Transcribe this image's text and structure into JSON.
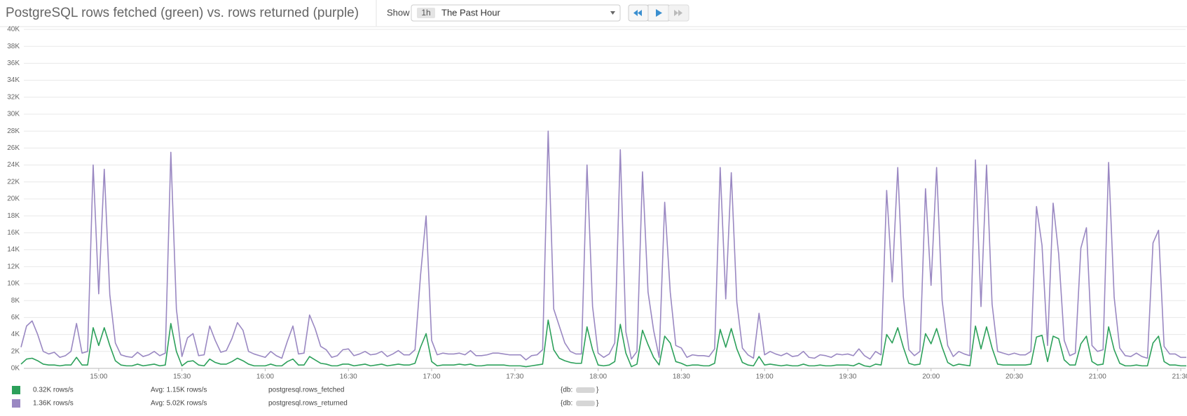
{
  "controls": {
    "show_label": "Show",
    "range_badge": "1h",
    "range_text": "The Past Hour"
  },
  "chart_data": {
    "type": "line",
    "title": "PostgreSQL rows fetched (green) vs. rows returned (purple)",
    "x": [
      "14:32",
      "14:34",
      "14:36",
      "14:38",
      "14:40",
      "14:42",
      "14:44",
      "14:46",
      "14:48",
      "14:50",
      "14:52",
      "14:54",
      "14:56",
      "14:58",
      "15:00",
      "15:02",
      "15:04",
      "15:06",
      "15:08",
      "15:10",
      "15:12",
      "15:14",
      "15:16",
      "15:18",
      "15:20",
      "15:22",
      "15:24",
      "15:26",
      "15:28",
      "15:30",
      "15:32",
      "15:34",
      "15:36",
      "15:38",
      "15:40",
      "15:42",
      "15:44",
      "15:46",
      "15:48",
      "15:50",
      "15:52",
      "15:54",
      "15:56",
      "15:58",
      "16:00",
      "16:02",
      "16:04",
      "16:06",
      "16:08",
      "16:10",
      "16:12",
      "16:14",
      "16:16",
      "16:18",
      "16:20",
      "16:22",
      "16:24",
      "16:26",
      "16:28",
      "16:30",
      "16:32",
      "16:34",
      "16:36",
      "16:38",
      "16:40",
      "16:42",
      "16:44",
      "16:46",
      "16:48",
      "16:50",
      "16:52",
      "16:54",
      "16:56",
      "16:58",
      "17:00",
      "17:02",
      "17:04",
      "17:06",
      "17:08",
      "17:10",
      "17:12",
      "17:14",
      "17:16",
      "17:18",
      "17:20",
      "17:22",
      "17:24",
      "17:26",
      "17:28",
      "17:30",
      "17:32",
      "17:34",
      "17:36",
      "17:38",
      "17:40",
      "17:42",
      "17:44",
      "17:46",
      "17:48",
      "17:50",
      "17:52",
      "17:54",
      "17:56",
      "17:58",
      "18:00",
      "18:02",
      "18:04",
      "18:06",
      "18:08",
      "18:10",
      "18:12",
      "18:14",
      "18:16",
      "18:18",
      "18:20",
      "18:22",
      "18:24",
      "18:26",
      "18:28",
      "18:30",
      "18:32",
      "18:34",
      "18:36",
      "18:38",
      "18:40",
      "18:42",
      "18:44",
      "18:46",
      "18:48",
      "18:50",
      "18:52",
      "18:54",
      "18:56",
      "18:58",
      "19:00",
      "19:02",
      "19:04",
      "19:06",
      "19:08",
      "19:10",
      "19:12",
      "19:14",
      "19:16",
      "19:18",
      "19:20",
      "19:22",
      "19:24",
      "19:26",
      "19:28",
      "19:30",
      "19:32",
      "19:34",
      "19:36",
      "19:38",
      "19:40",
      "19:42",
      "19:44",
      "19:46",
      "19:48",
      "19:50",
      "19:52",
      "19:54",
      "19:56",
      "19:58",
      "20:00",
      "20:02",
      "20:04",
      "20:06",
      "20:08",
      "20:10",
      "20:12",
      "20:14",
      "20:16",
      "20:18",
      "20:20",
      "20:22",
      "20:24",
      "20:26",
      "20:28",
      "20:30",
      "20:32",
      "20:34",
      "20:36",
      "20:38",
      "20:40",
      "20:42",
      "20:44",
      "20:46",
      "20:48",
      "20:50",
      "20:52",
      "20:54",
      "20:56",
      "20:58",
      "21:00",
      "21:02",
      "21:04",
      "21:06",
      "21:08",
      "21:10",
      "21:12",
      "21:14",
      "21:16",
      "21:18",
      "21:20",
      "21:22",
      "21:24",
      "21:26",
      "21:28",
      "21:30",
      "21:32"
    ],
    "xlim": [
      "14:32",
      "21:32"
    ],
    "xticks": [
      "15:00",
      "15:30",
      "16:00",
      "16:30",
      "17:00",
      "17:30",
      "18:00",
      "18:30",
      "19:00",
      "19:30",
      "20:00",
      "20:30",
      "21:00",
      "21:30"
    ],
    "ylim": [
      0,
      40000
    ],
    "yticks": [
      {
        "value": 0,
        "label": "0K"
      },
      {
        "value": 2000,
        "label": "2K"
      },
      {
        "value": 4000,
        "label": "4K"
      },
      {
        "value": 6000,
        "label": "6K"
      },
      {
        "value": 8000,
        "label": "8K"
      },
      {
        "value": 10000,
        "label": "10K"
      },
      {
        "value": 12000,
        "label": "12K"
      },
      {
        "value": 14000,
        "label": "14K"
      },
      {
        "value": 16000,
        "label": "16K"
      },
      {
        "value": 18000,
        "label": "18K"
      },
      {
        "value": 20000,
        "label": "20K"
      },
      {
        "value": 22000,
        "label": "22K"
      },
      {
        "value": 24000,
        "label": "24K"
      },
      {
        "value": 26000,
        "label": "26K"
      },
      {
        "value": 28000,
        "label": "28K"
      },
      {
        "value": 30000,
        "label": "30K"
      },
      {
        "value": 32000,
        "label": "32K"
      },
      {
        "value": 34000,
        "label": "34K"
      },
      {
        "value": 36000,
        "label": "36K"
      },
      {
        "value": 38000,
        "label": "38K"
      },
      {
        "value": 40000,
        "label": "40K"
      }
    ],
    "grid": true,
    "series": [
      {
        "name": "postgresql.rows_fetched",
        "color": "#2ca05a",
        "current": "0.32K rows/s",
        "avg": "Avg: 1.15K rows/s",
        "tag_open": "{db:",
        "tag_close": "}",
        "values": [
          500,
          1100,
          1200,
          900,
          500,
          400,
          400,
          300,
          400,
          400,
          1300,
          400,
          400,
          4800,
          2700,
          4800,
          2700,
          900,
          400,
          300,
          300,
          500,
          300,
          400,
          500,
          300,
          400,
          5300,
          2000,
          300,
          800,
          900,
          400,
          300,
          1100,
          700,
          500,
          500,
          800,
          1200,
          900,
          500,
          300,
          300,
          300,
          500,
          300,
          300,
          800,
          1100,
          400,
          400,
          1400,
          1000,
          600,
          500,
          300,
          300,
          500,
          500,
          300,
          400,
          500,
          300,
          400,
          500,
          300,
          400,
          500,
          400,
          400,
          600,
          2500,
          4100,
          800,
          300,
          400,
          400,
          400,
          500,
          400,
          500,
          300,
          300,
          400,
          400,
          400,
          400,
          300,
          300,
          300,
          200,
          300,
          400,
          500,
          5700,
          2200,
          1200,
          900,
          700,
          600,
          600,
          4900,
          2200,
          400,
          300,
          400,
          800,
          5200,
          1800,
          200,
          500,
          4500,
          2800,
          1300,
          400,
          3800,
          3000,
          800,
          600,
          300,
          400,
          400,
          300,
          300,
          600,
          4600,
          2500,
          4700,
          2300,
          700,
          400,
          300,
          1400,
          400,
          500,
          400,
          300,
          400,
          300,
          300,
          500,
          300,
          300,
          400,
          300,
          300,
          400,
          400,
          400,
          300,
          600,
          300,
          200,
          500,
          400,
          4000,
          3000,
          4800,
          2500,
          600,
          400,
          500,
          4100,
          2900,
          4700,
          2500,
          700,
          300,
          500,
          400,
          300,
          5000,
          2300,
          4900,
          2400,
          500,
          400,
          400,
          400,
          400,
          400,
          500,
          3700,
          3900,
          800,
          3800,
          3500,
          1000,
          400,
          400,
          2900,
          3800,
          800,
          400,
          500,
          4900,
          2200,
          600,
          300,
          300,
          400,
          300,
          300,
          3000,
          3800,
          800,
          400,
          400,
          300,
          300
        ]
      },
      {
        "name": "postgresql.rows_returned",
        "color": "#9a88c2",
        "current": "1.36K rows/s",
        "avg": "Avg: 5.02K rows/s",
        "tag_open": "{db:",
        "tag_close": "}",
        "values": [
          2500,
          5000,
          5600,
          4000,
          2000,
          1700,
          1900,
          1300,
          1500,
          2000,
          5300,
          1800,
          2000,
          24000,
          8800,
          23500,
          8700,
          3000,
          1600,
          1400,
          1300,
          1900,
          1400,
          1600,
          2000,
          1500,
          1800,
          25500,
          7000,
          1400,
          3600,
          4100,
          1500,
          1600,
          5000,
          3300,
          1900,
          2100,
          3500,
          5400,
          4500,
          2000,
          1700,
          1500,
          1300,
          2000,
          1500,
          1200,
          3200,
          5000,
          1700,
          1800,
          6300,
          4700,
          2600,
          2200,
          1300,
          1500,
          2200,
          2300,
          1500,
          1700,
          2000,
          1600,
          1700,
          2000,
          1400,
          1700,
          2100,
          1600,
          1600,
          2200,
          11000,
          18000,
          3300,
          1600,
          1800,
          1700,
          1700,
          1800,
          1600,
          2100,
          1500,
          1500,
          1600,
          1800,
          1800,
          1700,
          1600,
          1600,
          1600,
          1000,
          1500,
          1600,
          2200,
          28000,
          7000,
          5000,
          3000,
          2000,
          1700,
          1700,
          24000,
          7300,
          1800,
          1300,
          1700,
          3000,
          25800,
          4300,
          1100,
          2000,
          23200,
          9000,
          4500,
          1300,
          19600,
          9000,
          2700,
          2400,
          1300,
          1600,
          1500,
          1500,
          1400,
          2300,
          23700,
          8200,
          23100,
          7800,
          2400,
          1600,
          1200,
          6500,
          1600,
          2000,
          1700,
          1500,
          1800,
          1400,
          1500,
          2000,
          1300,
          1200,
          1600,
          1500,
          1300,
          1700,
          1600,
          1700,
          1500,
          2300,
          1500,
          1100,
          2000,
          1600,
          21000,
          10200,
          23700,
          8500,
          2200,
          1500,
          2000,
          21200,
          9800,
          23700,
          8000,
          2700,
          1400,
          2000,
          1700,
          1500,
          24600,
          7300,
          24000,
          7600,
          2000,
          1800,
          1600,
          1800,
          1600,
          1600,
          2000,
          19100,
          14500,
          2700,
          19500,
          13500,
          3300,
          1500,
          1800,
          14200,
          16600,
          2700,
          2000,
          2200,
          24300,
          8400,
          2400,
          1500,
          1400,
          1800,
          1400,
          1200,
          14800,
          16300,
          2600,
          1700,
          1700,
          1300,
          1300
        ]
      }
    ]
  }
}
